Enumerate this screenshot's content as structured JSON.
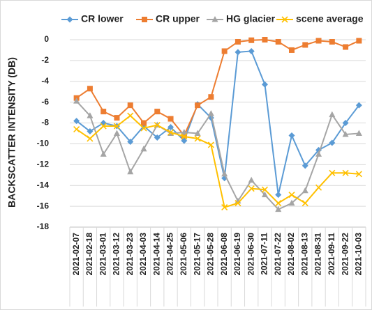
{
  "chart_data": {
    "type": "line",
    "y_label": "BACKSCATTER INTENSITY (DB)",
    "categories": [
      "2021-02-07",
      "2021-02-18",
      "2021-03-01",
      "2021-03-12",
      "2021-03-23",
      "2021-04-03",
      "2021-04-14",
      "2021-04-25",
      "2021-05-06",
      "2021-05-17",
      "2021-05-28",
      "2021-06-08",
      "2021-06-19",
      "2021-06-30",
      "2021-07-11",
      "2021-07-22",
      "2021-08-02",
      "2021-08-13",
      "2021-08-31",
      "2021-09-11",
      "2021-09-22",
      "2021-10-03"
    ],
    "series": [
      {
        "name": "CR lower",
        "color": "#5b9bd5",
        "marker": "diamond",
        "values": [
          -7.8,
          -8.8,
          -8.0,
          -8.3,
          -9.8,
          -8.3,
          -9.4,
          -8.4,
          -9.7,
          -6.2,
          -7.5,
          -13.3,
          -1.2,
          -1.1,
          -4.3,
          -14.9,
          -9.2,
          -12.1,
          -10.6,
          -9.9,
          -8.0,
          -6.3
        ]
      },
      {
        "name": "CR upper",
        "color": "#ed7d31",
        "marker": "square",
        "values": [
          -5.6,
          -4.7,
          -6.9,
          -7.5,
          -6.3,
          -8.0,
          -6.9,
          -7.6,
          -9.2,
          -6.3,
          -5.5,
          -1.1,
          -0.2,
          -0.05,
          0,
          -0.2,
          -1.0,
          -0.5,
          -0.1,
          -0.2,
          -0.7,
          -0.1
        ]
      },
      {
        "name": "HG glacier",
        "color": "#a5a5a5",
        "marker": "triangle",
        "values": [
          -5.9,
          -7.3,
          -11.0,
          -9.0,
          -12.7,
          -10.5,
          -8.2,
          -9.0,
          -8.9,
          -9.0,
          -7.1,
          -12.9,
          -15.5,
          -13.5,
          -14.9,
          -16.3,
          -15.7,
          -14.5,
          -11.0,
          -7.2,
          -9.1,
          -9.0
        ]
      },
      {
        "name": "scene average",
        "color": "#ffc000",
        "marker": "x",
        "values": [
          -8.6,
          -9.5,
          -8.3,
          -8.3,
          -7.3,
          -8.5,
          -8.2,
          -8.9,
          -9.3,
          -9.5,
          -10.1,
          -16.1,
          -15.7,
          -14.3,
          -14.4,
          -15.7,
          -14.9,
          -15.7,
          -14.2,
          -12.8,
          -12.8,
          -12.9
        ]
      }
    ],
    "ylim": [
      -18,
      0
    ],
    "yticks": [
      0,
      -2,
      -4,
      -6,
      -8,
      -10,
      -12,
      -14,
      -16,
      -18
    ],
    "grid": true,
    "legend": "top"
  }
}
